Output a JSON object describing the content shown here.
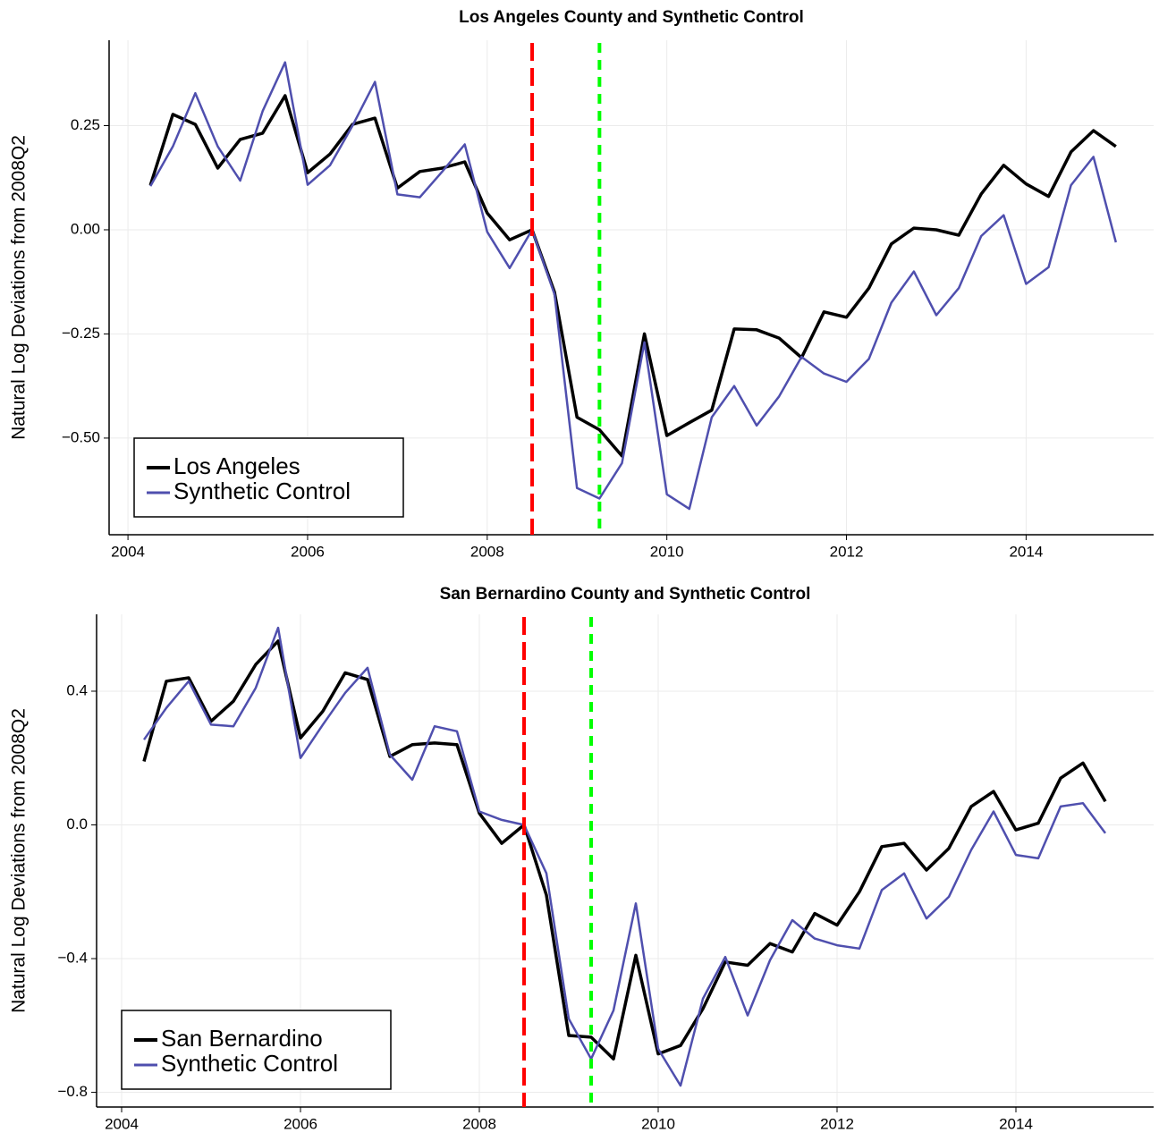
{
  "chart_data": [
    {
      "type": "line",
      "title": "Los Angeles County and Synthetic Control",
      "ylabel": "Natural Log Deviations from 2008Q2",
      "x": [
        2004.25,
        2004.5,
        2004.75,
        2005,
        2005.25,
        2005.5,
        2005.75,
        2006,
        2006.25,
        2006.5,
        2006.75,
        2007,
        2007.25,
        2007.5,
        2007.75,
        2008,
        2008.25,
        2008.5,
        2008.75,
        2009,
        2009.25,
        2009.5,
        2009.75,
        2010,
        2010.25,
        2010.5,
        2010.75,
        2011,
        2011.25,
        2011.5,
        2011.75,
        2012,
        2012.25,
        2012.5,
        2012.75,
        2013,
        2013.25,
        2013.5,
        2013.75,
        2014,
        2014.25,
        2014.5,
        2014.75,
        2015
      ],
      "series": [
        {
          "name": "Los Angeles",
          "color": "#000000",
          "values": [
            0.107,
            0.277,
            0.253,
            0.148,
            0.217,
            0.232,
            0.322,
            0.137,
            0.182,
            0.253,
            0.268,
            0.1,
            0.14,
            0.148,
            0.163,
            0.04,
            -0.024,
            0,
            -0.15,
            -0.45,
            -0.48,
            -0.543,
            -0.25,
            -0.494,
            -0.463,
            -0.433,
            -0.238,
            -0.24,
            -0.26,
            -0.307,
            -0.197,
            -0.21,
            -0.14,
            -0.034,
            0.004,
            0,
            -0.013,
            0.086,
            0.155,
            0.11,
            0.08,
            0.187,
            0.238,
            0.2
          ]
        },
        {
          "name": "Synthetic Control",
          "color": "#4f4fae",
          "values": [
            0.105,
            0.2,
            0.328,
            0.2,
            0.118,
            0.285,
            0.402,
            0.108,
            0.155,
            0.25,
            0.355,
            0.085,
            0.078,
            0.14,
            0.205,
            -0.005,
            -0.092,
            0,
            -0.155,
            -0.62,
            -0.645,
            -0.56,
            -0.27,
            -0.635,
            -0.67,
            -0.45,
            -0.375,
            -0.47,
            -0.4,
            -0.305,
            -0.345,
            -0.365,
            -0.31,
            -0.175,
            -0.1,
            -0.205,
            -0.14,
            -0.015,
            0.035,
            -0.13,
            -0.09,
            0.107,
            0.175,
            -0.03
          ]
        }
      ],
      "vlines": [
        {
          "x": 2008.5,
          "color": "#ff0000"
        },
        {
          "x": 2009.25,
          "color": "#00ff00"
        }
      ],
      "xlim": [
        2003.79,
        2015.42
      ],
      "ylim": [
        -0.732,
        0.455
      ],
      "xticks": [
        2004,
        2006,
        2008,
        2010,
        2012,
        2014
      ],
      "yticks": [
        0.25,
        {
          "value": 0,
          "label": "0.00"
        },
        {
          "value": -0.25,
          "label": "−0.25"
        },
        {
          "value": -0.5,
          "label": "−0.50"
        }
      ],
      "grid": true,
      "legend": "bottom-left"
    },
    {
      "type": "line",
      "title": "San Bernardino County and Synthetic Control",
      "ylabel": "Natural Log Deviations from 2008Q2",
      "x": [
        2004.25,
        2004.5,
        2004.75,
        2005,
        2005.25,
        2005.5,
        2005.75,
        2006,
        2006.25,
        2006.5,
        2006.75,
        2007,
        2007.25,
        2007.5,
        2007.75,
        2008,
        2008.25,
        2008.5,
        2008.75,
        2009,
        2009.25,
        2009.5,
        2009.75,
        2010,
        2010.25,
        2010.5,
        2010.75,
        2011,
        2011.25,
        2011.5,
        2011.75,
        2012,
        2012.25,
        2012.5,
        2012.75,
        2013,
        2013.25,
        2013.5,
        2013.75,
        2014,
        2014.25,
        2014.5,
        2014.75,
        2015
      ],
      "series": [
        {
          "name": "San Bernardino",
          "color": "#000000",
          "values": [
            0.19,
            0.43,
            0.44,
            0.31,
            0.37,
            0.48,
            0.55,
            0.26,
            0.34,
            0.455,
            0.435,
            0.205,
            0.24,
            0.245,
            0.24,
            0.035,
            -0.055,
            0,
            -0.21,
            -0.63,
            -0.635,
            -0.7,
            -0.39,
            -0.685,
            -0.66,
            -0.55,
            -0.41,
            -0.42,
            -0.355,
            -0.38,
            -0.265,
            -0.3,
            -0.2,
            -0.065,
            -0.055,
            -0.135,
            -0.07,
            0.055,
            0.1,
            -0.015,
            0.005,
            0.14,
            0.185,
            0.07
          ]
        },
        {
          "name": "Synthetic Control",
          "color": "#4f4fae",
          "values": [
            0.255,
            0.35,
            0.43,
            0.3,
            0.295,
            0.41,
            0.59,
            0.2,
            0.3,
            0.395,
            0.47,
            0.21,
            0.135,
            0.295,
            0.28,
            0.04,
            0.015,
            0,
            -0.145,
            -0.58,
            -0.7,
            -0.555,
            -0.235,
            -0.67,
            -0.78,
            -0.52,
            -0.395,
            -0.57,
            -0.405,
            -0.285,
            -0.34,
            -0.36,
            -0.37,
            -0.195,
            -0.145,
            -0.28,
            -0.215,
            -0.075,
            0.04,
            -0.09,
            -0.1,
            0.055,
            0.065,
            -0.025
          ]
        }
      ],
      "vlines": [
        {
          "x": 2008.5,
          "color": "#ff0000"
        },
        {
          "x": 2009.25,
          "color": "#00ff00"
        }
      ],
      "xlim": [
        2003.72,
        2015.54
      ],
      "ylim": [
        -0.844,
        0.63
      ],
      "xticks": [
        2004,
        2006,
        2008,
        2010,
        2012,
        2014
      ],
      "yticks": [
        0.4,
        {
          "value": 0,
          "label": "0.0"
        },
        {
          "value": -0.4,
          "label": "−0.4"
        },
        {
          "value": -0.8,
          "label": "−0.8"
        }
      ],
      "grid": true,
      "legend": "bottom-left"
    }
  ]
}
